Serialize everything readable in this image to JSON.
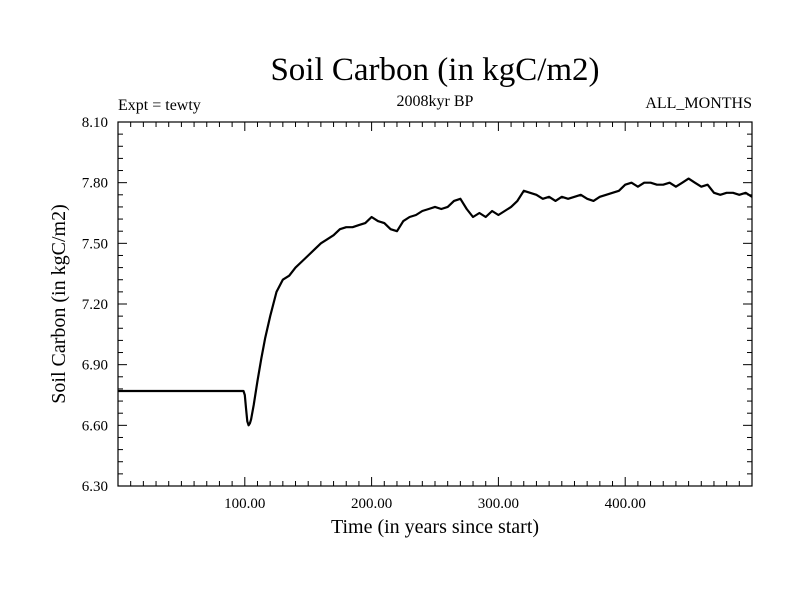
{
  "chart_data": {
    "type": "line",
    "title": "Soil Carbon (in kgC/m2)",
    "subtitle": "2008kyr BP",
    "experiment_label": "Expt = tewty",
    "months_label": "ALL_MONTHS",
    "xlabel": "Time (in years since start)",
    "ylabel": "Soil Carbon (in kgC/m2)",
    "xlim": [
      0,
      500
    ],
    "ylim": [
      6.3,
      8.1
    ],
    "x_ticks": [
      100,
      200,
      300,
      400
    ],
    "x_tick_labels": [
      "100.00",
      "200.00",
      "300.00",
      "400.00"
    ],
    "y_ticks": [
      6.3,
      6.6,
      6.9,
      7.2,
      7.5,
      7.8,
      8.1
    ],
    "y_tick_labels": [
      "6.30",
      "6.60",
      "6.90",
      "7.20",
      "7.50",
      "7.80",
      "8.10"
    ],
    "grid": false,
    "series": [
      {
        "name": "Soil Carbon",
        "color": "#000000",
        "x": [
          0,
          99,
          100,
          101,
          102,
          103,
          104,
          105,
          107,
          110,
          113,
          116,
          120,
          125,
          130,
          135,
          140,
          145,
          150,
          155,
          160,
          165,
          170,
          175,
          180,
          185,
          190,
          195,
          200,
          205,
          210,
          215,
          220,
          225,
          230,
          235,
          240,
          245,
          250,
          255,
          260,
          265,
          270,
          275,
          280,
          285,
          290,
          295,
          300,
          305,
          310,
          315,
          320,
          325,
          330,
          335,
          340,
          345,
          350,
          355,
          360,
          365,
          370,
          375,
          380,
          385,
          390,
          395,
          400,
          405,
          410,
          415,
          420,
          425,
          430,
          435,
          440,
          445,
          450,
          455,
          460,
          465,
          470,
          475,
          480,
          485,
          490,
          495,
          500
        ],
        "values": [
          6.77,
          6.77,
          6.75,
          6.68,
          6.62,
          6.6,
          6.61,
          6.63,
          6.7,
          6.82,
          6.93,
          7.03,
          7.14,
          7.26,
          7.32,
          7.34,
          7.38,
          7.41,
          7.44,
          7.47,
          7.5,
          7.52,
          7.54,
          7.57,
          7.58,
          7.58,
          7.59,
          7.6,
          7.63,
          7.61,
          7.6,
          7.57,
          7.56,
          7.61,
          7.63,
          7.64,
          7.66,
          7.67,
          7.68,
          7.67,
          7.68,
          7.71,
          7.72,
          7.67,
          7.63,
          7.65,
          7.63,
          7.66,
          7.64,
          7.66,
          7.68,
          7.71,
          7.76,
          7.75,
          7.74,
          7.72,
          7.73,
          7.71,
          7.73,
          7.72,
          7.73,
          7.74,
          7.72,
          7.71,
          7.73,
          7.74,
          7.75,
          7.76,
          7.79,
          7.8,
          7.78,
          7.8,
          7.8,
          7.79,
          7.79,
          7.8,
          7.78,
          7.8,
          7.82,
          7.8,
          7.78,
          7.79,
          7.75,
          7.74,
          7.75,
          7.75,
          7.74,
          7.75,
          7.73
        ]
      }
    ]
  }
}
